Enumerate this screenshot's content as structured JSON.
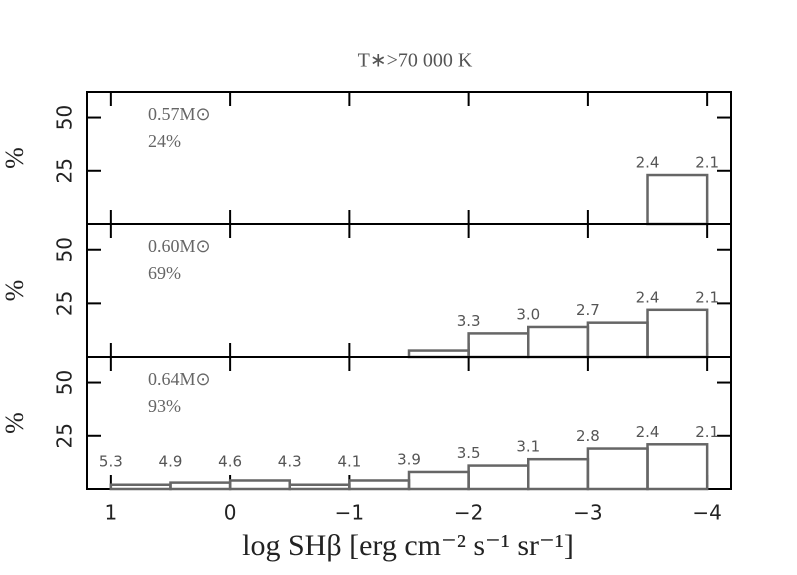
{
  "chart_data": [
    {
      "type": "histogram",
      "title": "T∗>70 000 K",
      "ylabel": "%",
      "annotations": [
        "0.57M⊙",
        "24%"
      ],
      "bins": [
        1,
        0.5,
        0,
        -0.5,
        -1,
        -1.5,
        -2,
        -2.5,
        -3,
        -3.5,
        -4
      ],
      "values": [
        0,
        0,
        0,
        0,
        0,
        0,
        0,
        0,
        0,
        23
      ],
      "edge_labels": [
        null,
        null,
        null,
        null,
        null,
        null,
        null,
        null,
        null,
        "2.4",
        "2.1"
      ],
      "color": "#666666",
      "xlim": [
        1.2,
        -4.2
      ],
      "xticks": [
        1,
        0,
        {
          "value": -1,
          "label": "−1"
        },
        {
          "value": -2,
          "label": "−2"
        },
        {
          "value": -3,
          "label": "−3"
        },
        {
          "value": -4,
          "label": "−4"
        }
      ],
      "ylim": [
        0,
        62
      ],
      "yticks": [
        25,
        50
      ]
    },
    {
      "type": "histogram",
      "ylabel": "%",
      "annotations": [
        "0.60M⊙",
        "69%"
      ],
      "bins": [
        1,
        0.5,
        0,
        -0.5,
        -1,
        -1.5,
        -2,
        -2.5,
        -3,
        -3.5,
        -4
      ],
      "values": [
        0,
        0,
        0,
        0,
        0,
        3,
        11,
        14,
        16,
        22
      ],
      "edge_labels": [
        null,
        null,
        null,
        null,
        null,
        null,
        "3.3",
        "3.0",
        "2.7",
        "2.4",
        "2.1"
      ],
      "color": "#666666",
      "xlim": [
        1.2,
        -4.2
      ],
      "xticks": [
        1,
        0,
        {
          "value": -1,
          "label": "−1"
        },
        {
          "value": -2,
          "label": "−2"
        },
        {
          "value": -3,
          "label": "−3"
        },
        {
          "value": -4,
          "label": "−4"
        }
      ],
      "ylim": [
        0,
        62
      ],
      "yticks": [
        25,
        50
      ]
    },
    {
      "type": "histogram",
      "ylabel": "%",
      "annotations": [
        "0.64M⊙",
        "93%"
      ],
      "xlabel": "log SHβ [erg cm⁻² s⁻¹ sr⁻¹]",
      "bins": [
        1,
        0.5,
        0,
        -0.5,
        -1,
        -1.5,
        -2,
        -2.5,
        -3,
        -3.5,
        -4
      ],
      "values": [
        2,
        3,
        4,
        2,
        4,
        8,
        11,
        14,
        19,
        21
      ],
      "edge_labels": [
        "5.3",
        "4.9",
        "4.6",
        "4.3",
        "4.1",
        "3.9",
        "3.5",
        "3.1",
        "2.8",
        "2.4",
        "2.1"
      ],
      "color": "#666666",
      "xlim": [
        1.2,
        -4.2
      ],
      "xticks": [
        1,
        0,
        {
          "value": -1,
          "label": "−1"
        },
        {
          "value": -2,
          "label": "−2"
        },
        {
          "value": -3,
          "label": "−3"
        },
        {
          "value": -4,
          "label": "−4"
        }
      ],
      "ylim": [
        0,
        62
      ],
      "yticks": [
        25,
        50
      ]
    }
  ]
}
